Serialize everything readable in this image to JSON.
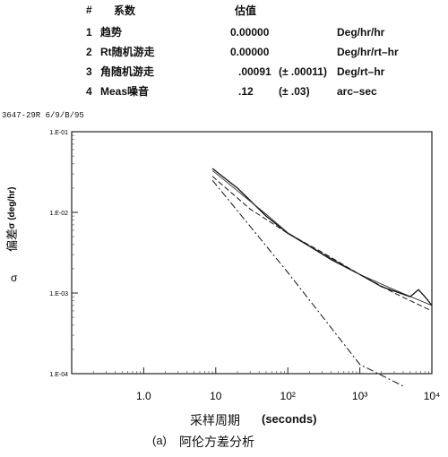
{
  "table": {
    "headers": [
      "#",
      "系数",
      "估值"
    ],
    "rows": [
      {
        "num": "1",
        "name": "趋势",
        "value": "0.00000",
        "err": "",
        "unit": "Deg/hr/hr"
      },
      {
        "num": "2",
        "name": "Rt随机游走",
        "value": "0.00000",
        "err": "",
        "unit": "Deg/hr/rt–hr"
      },
      {
        "num": "3",
        "name": "角随机游走",
        "value": ".00091",
        "err": "(± .00011)",
        "unit": "Deg/rt–hr"
      },
      {
        "num": "4",
        "name": "Meas噪音",
        "value": ".12",
        "err": "(± .03)",
        "unit": "arc–sec"
      }
    ]
  },
  "system_label": "3647-29R  6/9/B/95",
  "chart_data": {
    "type": "line",
    "xscale": "log",
    "yscale": "log",
    "xlim": [
      0.1,
      10000
    ],
    "ylim": [
      0.0001,
      0.1
    ],
    "x_tick_labels": [
      "1.0",
      "10",
      "10²",
      "10³",
      "10⁴"
    ],
    "y_tick_labels": [
      "1.E-01",
      "1.E-02",
      "1.E-03",
      "1.E-04"
    ],
    "ylabel_top": "σ (deg/hr)",
    "ylabel_zh": "偏差",
    "ylabel_sym": "σ",
    "xlabel_zh": "采样周期",
    "xlabel_en": "(seconds)",
    "caption_prefix": "(a)",
    "caption": "阿伦方差分析",
    "series": [
      {
        "style": "solid-measured",
        "x": [
          9,
          20,
          50,
          100,
          200,
          400,
          1000,
          2000,
          5000,
          6500,
          8000,
          10000
        ],
        "y": [
          0.035,
          0.02,
          0.009,
          0.0055,
          0.0038,
          0.0026,
          0.0017,
          0.0012,
          0.0009,
          0.0011,
          0.0009,
          0.0007
        ]
      },
      {
        "style": "solid-fit",
        "x": [
          9,
          50,
          100,
          300,
          1000,
          3000,
          10000
        ],
        "y": [
          0.033,
          0.0095,
          0.0056,
          0.0031,
          0.0017,
          0.0011,
          0.0007
        ]
      },
      {
        "style": "dashed-total",
        "x": [
          9,
          30,
          100,
          300,
          1000,
          3000,
          10000
        ],
        "y": [
          0.028,
          0.011,
          0.0055,
          0.0032,
          0.0017,
          0.001,
          0.0006
        ]
      },
      {
        "style": "dashdot-meas-noise",
        "x": [
          9,
          100,
          1000,
          4000
        ],
        "y": [
          0.025,
          0.0018,
          0.00013,
          7e-05
        ]
      }
    ]
  }
}
